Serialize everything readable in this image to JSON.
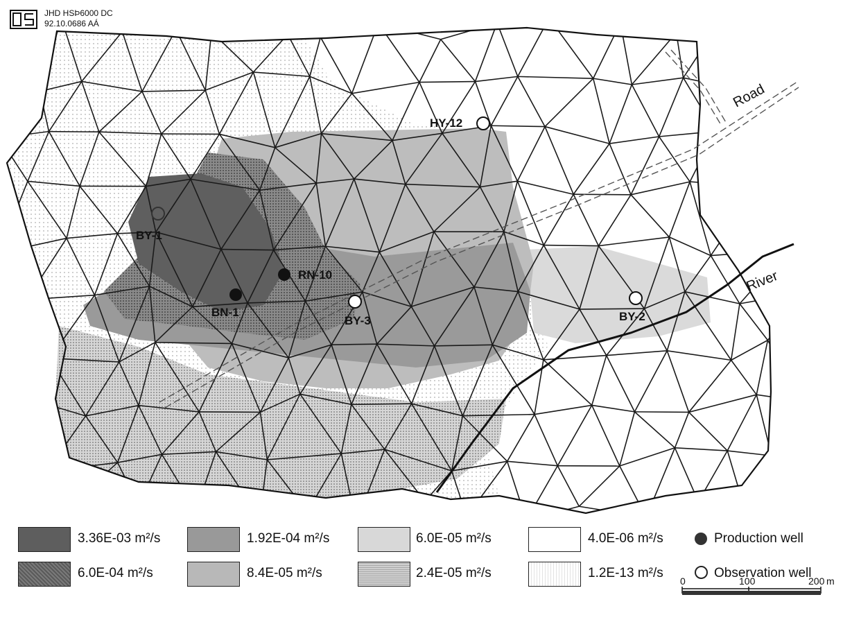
{
  "header": {
    "logo": "OS",
    "line1": "JHD HSÞ6000 DC",
    "line2": "92.10.0686 AÁ"
  },
  "map": {
    "road_label": "Road",
    "river_label": "River",
    "wells": [
      {
        "name": "HY-12",
        "type": "observation"
      },
      {
        "name": "BY-1",
        "type": "observation"
      },
      {
        "name": "RN-10",
        "type": "production"
      },
      {
        "name": "BN-1",
        "type": "production"
      },
      {
        "name": "BY-3",
        "type": "observation"
      },
      {
        "name": "BY-2",
        "type": "observation"
      }
    ]
  },
  "legend": {
    "zones": [
      {
        "value": "3.36E-03 m²/s",
        "color": "#5e5e5e"
      },
      {
        "value": "6.0E-04 m²/s",
        "color": "#7c7c7c"
      },
      {
        "value": "1.92E-04 m²/s",
        "color": "#999999"
      },
      {
        "value": "8.4E-05 m²/s",
        "color": "#b8b8b8"
      },
      {
        "value": "6.0E-05 m²/s",
        "color": "#d4d4d4"
      },
      {
        "value": "2.4E-05 m²/s",
        "color": "#c9c9c9"
      },
      {
        "value": "4.0E-06 m²/s",
        "color": "#ffffff"
      },
      {
        "value": "1.2E-13 m²/s",
        "color": "#f2f2f2"
      }
    ],
    "production_label": "Production well",
    "observation_label": "Observation well"
  },
  "scale": {
    "ticks": [
      "0",
      "100",
      "200"
    ],
    "unit": "m"
  }
}
